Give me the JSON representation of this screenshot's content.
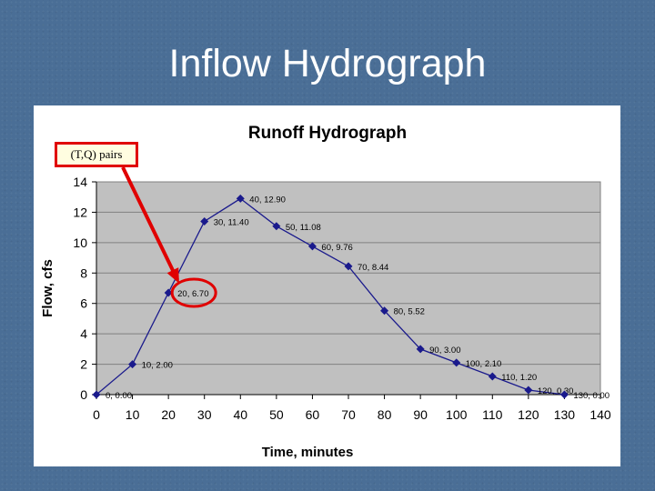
{
  "slide": {
    "title": "Inflow Hydrograph"
  },
  "callout": {
    "label": "(T,Q) pairs",
    "target_point_index": 2,
    "color": "#e00000"
  },
  "colors": {
    "series": "#1a1a8c",
    "plot_area": "#c0c0c0",
    "gridline": "#808080"
  },
  "chart_data": {
    "type": "line",
    "title": "Runoff Hydrograph",
    "xlabel": "Time, minutes",
    "ylabel": "Flow, cfs",
    "xlim": [
      0,
      140
    ],
    "ylim": [
      0,
      14
    ],
    "x_ticks": [
      "0",
      "10",
      "20",
      "30",
      "40",
      "50",
      "60",
      "70",
      "80",
      "90",
      "100",
      "110",
      "120",
      "130",
      "140"
    ],
    "y_ticks": [
      "0",
      "2",
      "4",
      "6",
      "8",
      "10",
      "12",
      "14"
    ],
    "grid": "horizontal",
    "marker": "diamond",
    "series": [
      {
        "x": [
          0,
          10,
          20,
          30,
          40,
          50,
          60,
          70,
          80,
          90,
          100,
          110,
          120,
          130
        ],
        "y": [
          0,
          2,
          6.7,
          11.4,
          12.9,
          11.08,
          9.76,
          8.44,
          5.52,
          3,
          2.1,
          1.2,
          0.3,
          0
        ],
        "labels": [
          "0, 0.00",
          "10, 2.00",
          "20, 6.70",
          "30, 11.40",
          "40, 12.90",
          "50, 11.08",
          "60, 9.76",
          "70, 8.44",
          "80, 5.52",
          "90, 3.00",
          "100, 2.10",
          "110, 1.20",
          "120, 0.30",
          "130, 0.00"
        ]
      }
    ]
  }
}
